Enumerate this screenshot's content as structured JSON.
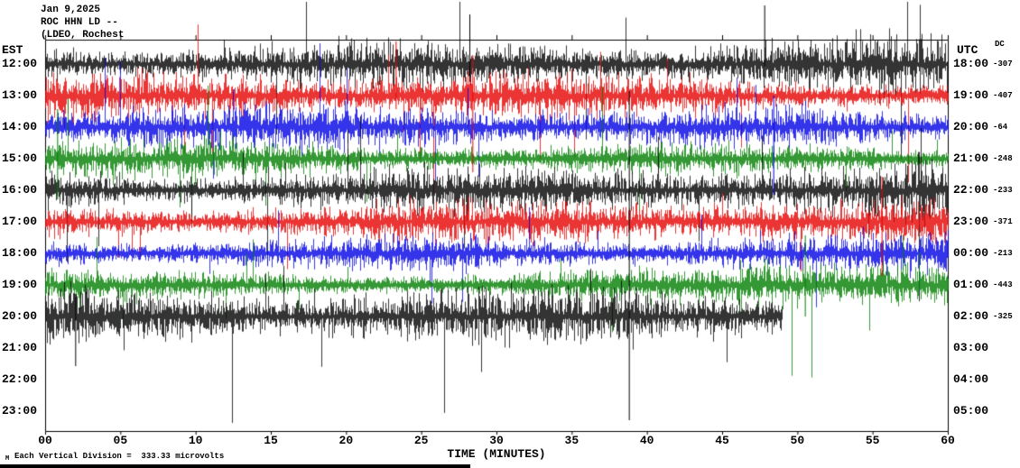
{
  "header": {
    "date": "Jan 9,2025",
    "station_line": "ROC HHN LD --",
    "network_line": "(LDEO, Rochest"
  },
  "axes": {
    "left_label": "EST",
    "right_label": "UTC",
    "dc_label": "DC",
    "x_axis_title": "TIME (MINUTES)",
    "x_tick_labels": [
      "00",
      "05",
      "10",
      "15",
      "20",
      "25",
      "30",
      "35",
      "40",
      "45",
      "50",
      "55",
      "60"
    ]
  },
  "footer": {
    "mark": "M",
    "scale_note": "Each Vertical Division =  333.33 microvolts"
  },
  "chart_data": {
    "type": "line",
    "title": "ROC HHN LD -- (LDEO, Rochest  Jan 9,2025 helicorder",
    "xlabel": "TIME (MINUTES)",
    "x_range_minutes": [
      0,
      60
    ],
    "x_ticks": [
      0,
      5,
      10,
      15,
      20,
      25,
      30,
      35,
      40,
      45,
      50,
      55,
      60
    ],
    "vertical_division_microvolts": 333.33,
    "rows": [
      {
        "est": "12:00",
        "utc": "18:00",
        "color": "#000000",
        "dc": -307,
        "end_minute": 60,
        "amp": 26
      },
      {
        "est": "13:00",
        "utc": "19:00",
        "color": "#e60000",
        "dc": -407,
        "end_minute": 60,
        "amp": 21
      },
      {
        "est": "14:00",
        "utc": "20:00",
        "color": "#0000e6",
        "dc": -64,
        "end_minute": 60,
        "amp": 19
      },
      {
        "est": "15:00",
        "utc": "21:00",
        "color": "#007d00",
        "dc": -248,
        "end_minute": 60,
        "amp": 17
      },
      {
        "est": "16:00",
        "utc": "22:00",
        "color": "#000000",
        "dc": -233,
        "end_minute": 60,
        "amp": 25
      },
      {
        "est": "17:00",
        "utc": "23:00",
        "color": "#e60000",
        "dc": -371,
        "end_minute": 60,
        "amp": 20
      },
      {
        "est": "18:00",
        "utc": "00:00",
        "color": "#0000e6",
        "dc": -213,
        "end_minute": 60,
        "amp": 18
      },
      {
        "est": "19:00",
        "utc": "01:00",
        "color": "#007d00",
        "dc": -443,
        "end_minute": 60,
        "amp": 16
      },
      {
        "est": "20:00",
        "utc": "02:00",
        "color": "#000000",
        "dc": -325,
        "end_minute": 49,
        "amp": 24
      }
    ],
    "pending_rows": [
      {
        "est": "21:00",
        "utc": "03:00"
      },
      {
        "est": "22:00",
        "utc": "04:00"
      },
      {
        "est": "23:00",
        "utc": "05:00"
      }
    ],
    "events": [
      {
        "row": 4,
        "minute": 38.8,
        "up": 110,
        "down": 255
      },
      {
        "row": 1,
        "minute": 23.3,
        "up": 60,
        "down": 15
      },
      {
        "row": 0,
        "minute": 28.2,
        "up": 55,
        "down": 20
      },
      {
        "row": 3,
        "minute": 0.8,
        "up": 55,
        "down": 45
      },
      {
        "row": 1,
        "minute": 28.4,
        "up": 45,
        "down": 85
      },
      {
        "row": 2,
        "minute": 48.4,
        "up": 35,
        "down": 75
      },
      {
        "row": 7,
        "minute": 50.5,
        "up": 55,
        "down": 35
      },
      {
        "row": 8,
        "minute": 2.0,
        "up": 25,
        "down": 55
      },
      {
        "row": 5,
        "minute": 55.6,
        "up": 50,
        "down": 60
      },
      {
        "row": 0,
        "minute": 47.8,
        "up": 65,
        "down": 15
      }
    ]
  }
}
